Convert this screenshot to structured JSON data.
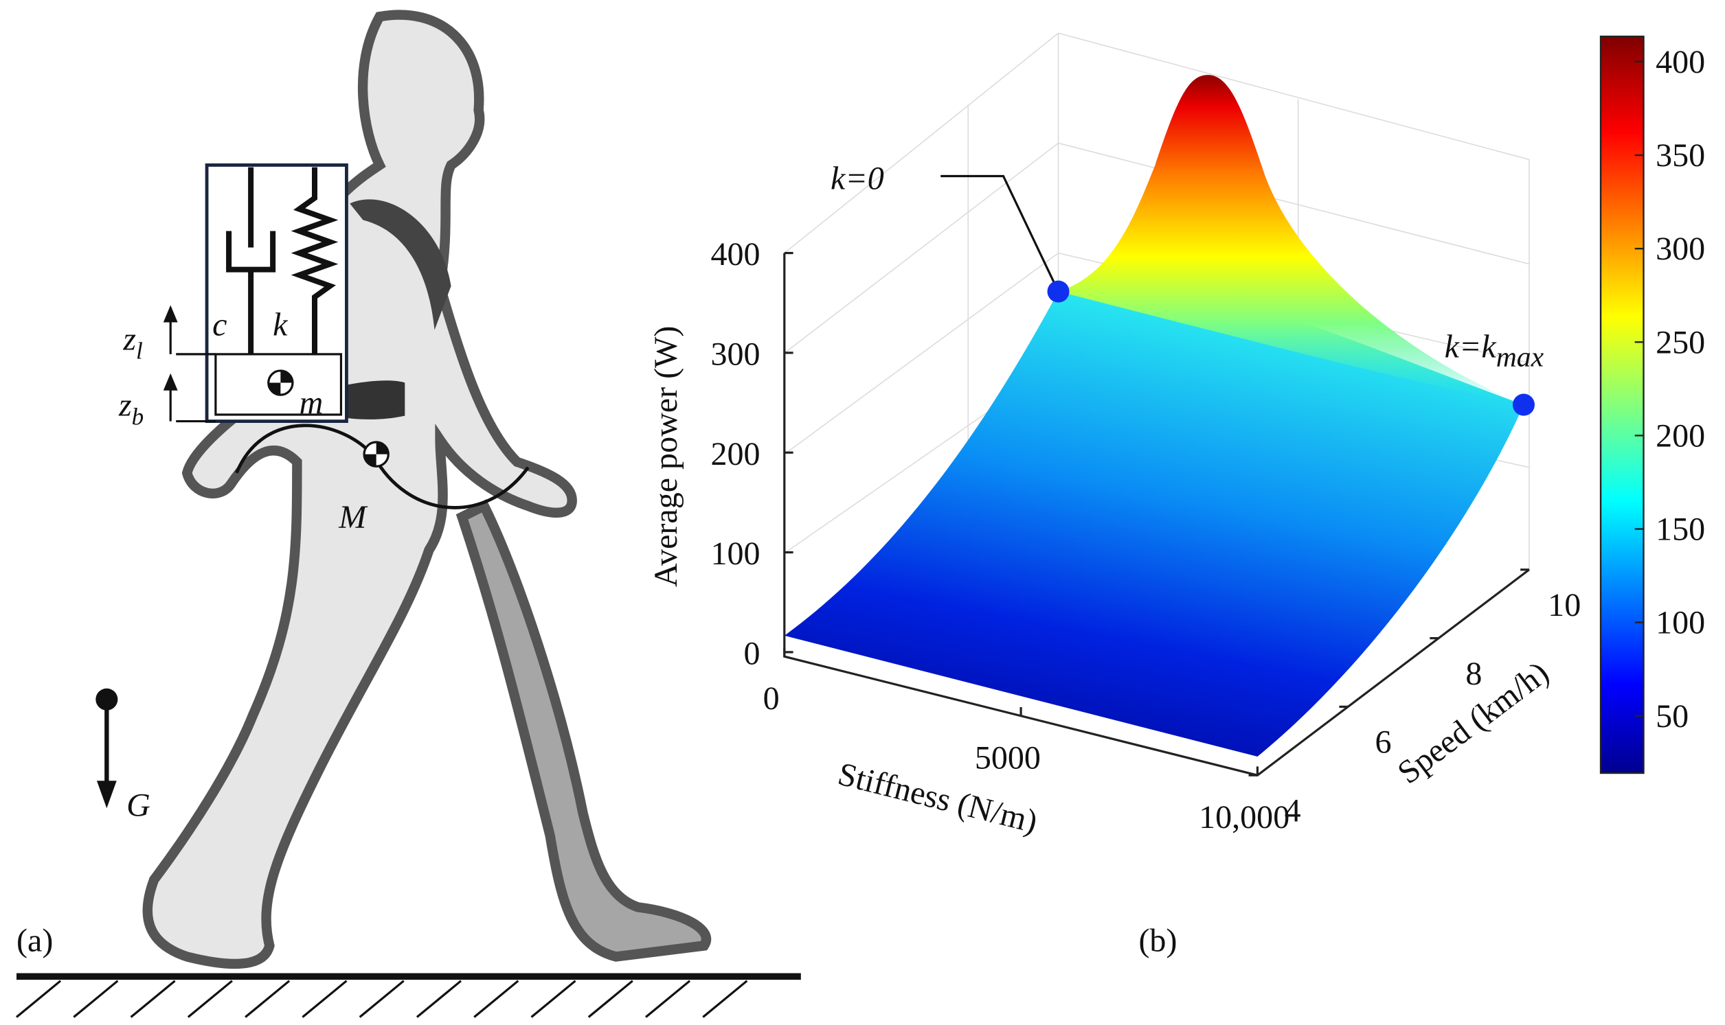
{
  "panel_a": {
    "label": "(a)",
    "damper": "c",
    "spring": "k",
    "z_l": {
      "text": "z",
      "subscript": "l"
    },
    "z_b": {
      "text": "z",
      "subscript": "b"
    },
    "load_mass": "m",
    "body_mass": "M",
    "gravity": "G"
  },
  "panel_b": {
    "label": "(b)",
    "annotations": [
      {
        "text": "k=0"
      },
      {
        "text": "k=k",
        "subscript": "max"
      }
    ],
    "z_axis": {
      "label": "Average power (W)",
      "ticks": [
        0,
        100,
        200,
        300,
        400
      ]
    },
    "x_axis": {
      "label": "Stiffness (N/m)",
      "ticks": [
        "0",
        "5000",
        "10,000"
      ]
    },
    "y_axis": {
      "label": "Speed (km/h)",
      "ticks": [
        4,
        6,
        8,
        10
      ]
    },
    "colorbar": {
      "ticks": [
        50,
        100,
        150,
        200,
        250,
        300,
        350,
        400
      ]
    }
  }
}
